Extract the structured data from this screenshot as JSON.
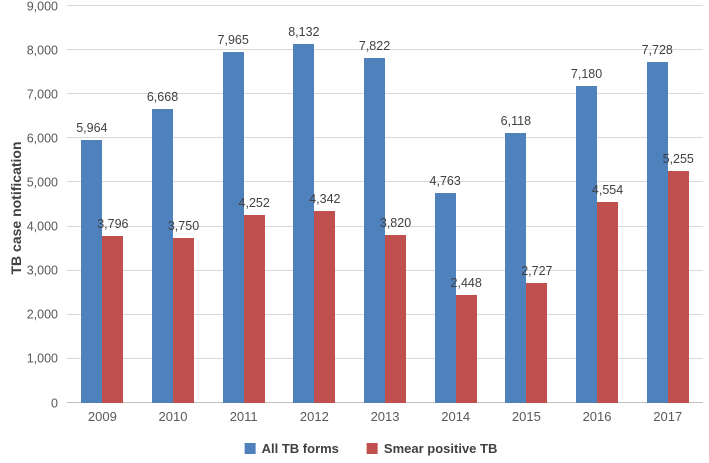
{
  "chart_data": {
    "type": "bar",
    "title": "",
    "xlabel": "",
    "ylabel": "TB case notification",
    "categories": [
      "2009",
      "2010",
      "2011",
      "2012",
      "2013",
      "2014",
      "2015",
      "2016",
      "2017"
    ],
    "series": [
      {
        "name": "All TB forms",
        "color": "#4F81BD",
        "values": [
          5964,
          6668,
          7965,
          8132,
          7822,
          4763,
          6118,
          7180,
          7728
        ],
        "data_labels": [
          "5,964",
          "6,668",
          "7,965",
          "8,132",
          "7,822",
          "4,763",
          "6,118",
          "7,180",
          "7,728"
        ]
      },
      {
        "name": "Smear positive TB",
        "color": "#C0504D",
        "values": [
          3796,
          3750,
          4252,
          4342,
          3820,
          2448,
          2727,
          4554,
          5255
        ],
        "data_labels": [
          "3,796",
          "3,750",
          "4,252",
          "4,342",
          "3,820",
          "2,448",
          "2,727",
          "4,554",
          "5,255"
        ]
      }
    ],
    "ylim": [
      0,
      9000
    ],
    "y_tick_labels": [
      "0",
      "1,000",
      "2,000",
      "3,000",
      "4,000",
      "5,000",
      "6,000",
      "7,000",
      "8,000",
      "9,000"
    ],
    "grid": true,
    "data_labels": true,
    "legend_position": "bottom"
  },
  "colors": {
    "gridline": "#D9D9D9",
    "axis_line": "#BFBFBF",
    "tick_text": "#595959",
    "label_text": "#404040"
  }
}
